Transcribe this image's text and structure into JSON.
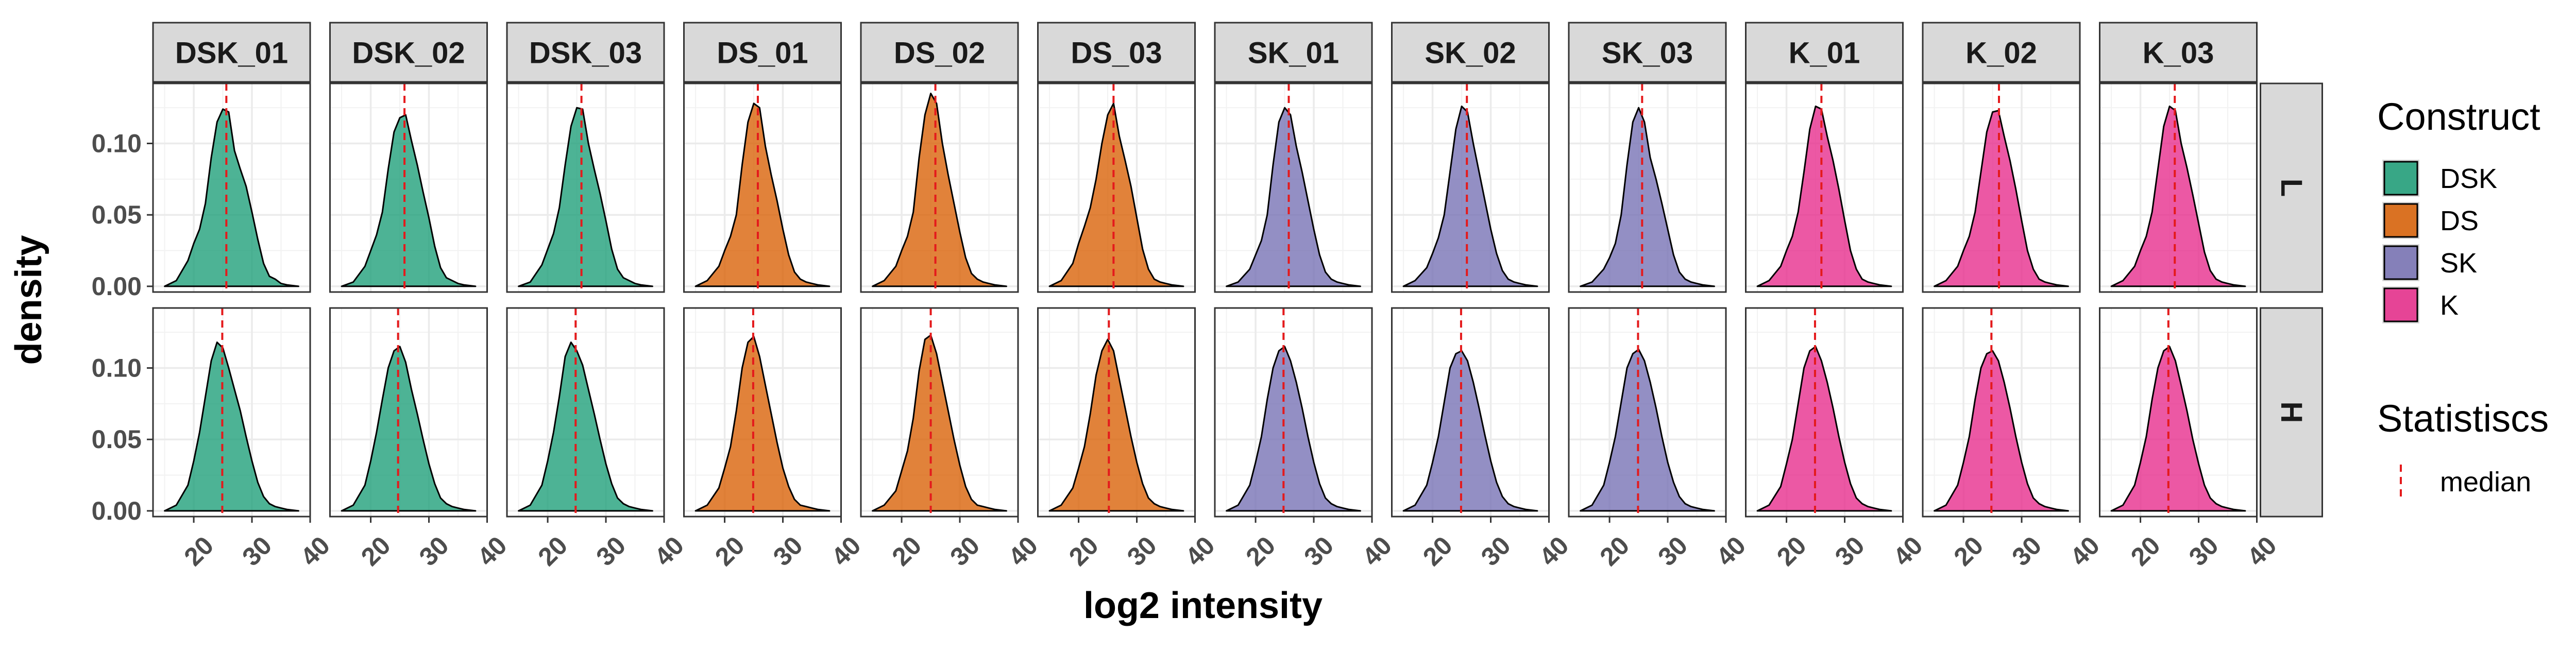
{
  "chart_data": {
    "type": "density",
    "facet_columns": [
      "DSK_01",
      "DSK_02",
      "DSK_03",
      "DS_01",
      "DS_02",
      "DS_03",
      "SK_01",
      "SK_02",
      "SK_03",
      "K_01",
      "K_02",
      "K_03"
    ],
    "facet_rows": [
      "L",
      "H"
    ],
    "column_construct": [
      "DSK",
      "DSK",
      "DSK",
      "DS",
      "DS",
      "DS",
      "SK",
      "SK",
      "SK",
      "K",
      "K",
      "K"
    ],
    "xlabel": "log2 intensity",
    "ylabel": "density",
    "xlim": [
      13,
      40
    ],
    "ylim": [
      -0.004,
      0.142
    ],
    "x_ticks": [
      20,
      30,
      40
    ],
    "x_tick_labels": [
      "20",
      "30",
      "40"
    ],
    "y_ticks": [
      0.0,
      0.05,
      0.1
    ],
    "y_tick_labels": [
      "0.00",
      "0.05",
      "0.10"
    ],
    "grid": true,
    "median_line": {
      "color": "#E41A1C",
      "style": "dashed"
    },
    "density_x": [
      15,
      17,
      19,
      20,
      21,
      22,
      23,
      24,
      25,
      26,
      27,
      28,
      29,
      30,
      31,
      32,
      33,
      34,
      35,
      36,
      38
    ],
    "panels": {
      "L": [
        {
          "median": 25.6,
          "density": [
            0.0,
            0.004,
            0.018,
            0.03,
            0.04,
            0.058,
            0.09,
            0.115,
            0.124,
            0.122,
            0.095,
            0.082,
            0.07,
            0.052,
            0.033,
            0.016,
            0.007,
            0.005,
            0.002,
            0.001,
            0.0
          ]
        },
        {
          "median": 25.8,
          "density": [
            0.0,
            0.003,
            0.014,
            0.025,
            0.036,
            0.052,
            0.082,
            0.108,
            0.118,
            0.12,
            0.102,
            0.085,
            0.066,
            0.048,
            0.028,
            0.013,
            0.006,
            0.004,
            0.002,
            0.001,
            0.0
          ]
        },
        {
          "median": 25.8,
          "density": [
            0.0,
            0.003,
            0.015,
            0.026,
            0.037,
            0.055,
            0.085,
            0.112,
            0.125,
            0.124,
            0.1,
            0.082,
            0.065,
            0.046,
            0.026,
            0.012,
            0.006,
            0.004,
            0.002,
            0.001,
            0.0
          ]
        },
        {
          "median": 25.7,
          "density": [
            0.0,
            0.004,
            0.014,
            0.025,
            0.035,
            0.05,
            0.085,
            0.115,
            0.128,
            0.125,
            0.098,
            0.078,
            0.06,
            0.04,
            0.022,
            0.01,
            0.005,
            0.003,
            0.002,
            0.001,
            0.0
          ]
        },
        {
          "median": 25.8,
          "density": [
            0.0,
            0.004,
            0.014,
            0.025,
            0.035,
            0.052,
            0.09,
            0.12,
            0.135,
            0.128,
            0.1,
            0.078,
            0.058,
            0.038,
            0.02,
            0.009,
            0.005,
            0.003,
            0.002,
            0.001,
            0.0
          ]
        },
        {
          "median": 26.0,
          "density": [
            0.0,
            0.004,
            0.016,
            0.03,
            0.042,
            0.055,
            0.075,
            0.1,
            0.12,
            0.128,
            0.105,
            0.088,
            0.07,
            0.048,
            0.026,
            0.012,
            0.005,
            0.003,
            0.002,
            0.001,
            0.0
          ]
        },
        {
          "median": 25.7,
          "density": [
            0.0,
            0.003,
            0.012,
            0.022,
            0.032,
            0.05,
            0.085,
            0.115,
            0.125,
            0.12,
            0.098,
            0.08,
            0.06,
            0.04,
            0.022,
            0.01,
            0.005,
            0.003,
            0.002,
            0.001,
            0.0
          ]
        },
        {
          "median": 25.9,
          "density": [
            0.0,
            0.004,
            0.013,
            0.023,
            0.034,
            0.05,
            0.08,
            0.11,
            0.126,
            0.122,
            0.1,
            0.08,
            0.06,
            0.04,
            0.023,
            0.011,
            0.005,
            0.003,
            0.002,
            0.001,
            0.0
          ]
        },
        {
          "median": 25.6,
          "density": [
            0.0,
            0.003,
            0.012,
            0.02,
            0.03,
            0.05,
            0.085,
            0.115,
            0.125,
            0.115,
            0.09,
            0.075,
            0.058,
            0.04,
            0.022,
            0.01,
            0.005,
            0.003,
            0.002,
            0.001,
            0.0
          ]
        },
        {
          "median": 26.0,
          "density": [
            0.0,
            0.004,
            0.014,
            0.025,
            0.035,
            0.052,
            0.08,
            0.11,
            0.126,
            0.124,
            0.105,
            0.088,
            0.068,
            0.046,
            0.025,
            0.012,
            0.005,
            0.003,
            0.002,
            0.001,
            0.0
          ]
        },
        {
          "median": 26.1,
          "density": [
            0.0,
            0.004,
            0.014,
            0.025,
            0.035,
            0.052,
            0.08,
            0.108,
            0.122,
            0.123,
            0.105,
            0.088,
            0.068,
            0.046,
            0.025,
            0.012,
            0.005,
            0.003,
            0.002,
            0.001,
            0.0
          ]
        },
        {
          "median": 25.9,
          "density": [
            0.0,
            0.004,
            0.014,
            0.025,
            0.035,
            0.052,
            0.082,
            0.112,
            0.126,
            0.123,
            0.1,
            0.083,
            0.064,
            0.044,
            0.024,
            0.011,
            0.005,
            0.003,
            0.002,
            0.001,
            0.0
          ]
        }
      ],
      "H": [
        {
          "median": 24.9,
          "density": [
            0.0,
            0.004,
            0.018,
            0.035,
            0.055,
            0.08,
            0.105,
            0.118,
            0.114,
            0.1,
            0.085,
            0.07,
            0.052,
            0.035,
            0.02,
            0.01,
            0.005,
            0.003,
            0.002,
            0.001,
            0.0
          ]
        },
        {
          "median": 24.7,
          "density": [
            0.0,
            0.004,
            0.018,
            0.035,
            0.055,
            0.078,
            0.1,
            0.112,
            0.115,
            0.104,
            0.085,
            0.068,
            0.05,
            0.033,
            0.019,
            0.009,
            0.005,
            0.003,
            0.002,
            0.001,
            0.0
          ]
        },
        {
          "median": 24.8,
          "density": [
            0.0,
            0.004,
            0.018,
            0.035,
            0.055,
            0.08,
            0.108,
            0.118,
            0.112,
            0.102,
            0.085,
            0.068,
            0.05,
            0.033,
            0.019,
            0.009,
            0.005,
            0.003,
            0.002,
            0.001,
            0.0
          ]
        },
        {
          "median": 24.9,
          "density": [
            0.0,
            0.004,
            0.016,
            0.03,
            0.045,
            0.07,
            0.1,
            0.118,
            0.122,
            0.108,
            0.088,
            0.068,
            0.048,
            0.03,
            0.017,
            0.008,
            0.004,
            0.003,
            0.002,
            0.001,
            0.0
          ]
        },
        {
          "median": 25.0,
          "density": [
            0.0,
            0.004,
            0.014,
            0.028,
            0.042,
            0.065,
            0.098,
            0.12,
            0.123,
            0.11,
            0.09,
            0.07,
            0.05,
            0.032,
            0.017,
            0.008,
            0.004,
            0.003,
            0.002,
            0.001,
            0.0
          ]
        },
        {
          "median": 25.2,
          "density": [
            0.0,
            0.004,
            0.016,
            0.03,
            0.045,
            0.068,
            0.095,
            0.112,
            0.12,
            0.112,
            0.092,
            0.072,
            0.052,
            0.034,
            0.019,
            0.009,
            0.005,
            0.003,
            0.002,
            0.001,
            0.0
          ]
        },
        {
          "median": 24.8,
          "density": [
            0.0,
            0.004,
            0.018,
            0.034,
            0.052,
            0.078,
            0.1,
            0.112,
            0.115,
            0.105,
            0.09,
            0.072,
            0.052,
            0.034,
            0.019,
            0.009,
            0.005,
            0.003,
            0.002,
            0.001,
            0.0
          ]
        },
        {
          "median": 24.9,
          "density": [
            0.0,
            0.004,
            0.018,
            0.034,
            0.052,
            0.076,
            0.1,
            0.11,
            0.112,
            0.105,
            0.09,
            0.072,
            0.053,
            0.035,
            0.02,
            0.01,
            0.005,
            0.003,
            0.002,
            0.001,
            0.0
          ]
        },
        {
          "median": 24.9,
          "density": [
            0.0,
            0.004,
            0.018,
            0.034,
            0.052,
            0.076,
            0.1,
            0.11,
            0.113,
            0.105,
            0.09,
            0.072,
            0.052,
            0.034,
            0.02,
            0.01,
            0.005,
            0.003,
            0.002,
            0.001,
            0.0
          ]
        },
        {
          "median": 24.9,
          "density": [
            0.0,
            0.004,
            0.017,
            0.033,
            0.05,
            0.075,
            0.1,
            0.112,
            0.115,
            0.105,
            0.09,
            0.072,
            0.052,
            0.034,
            0.019,
            0.009,
            0.005,
            0.003,
            0.002,
            0.001,
            0.0
          ]
        },
        {
          "median": 24.8,
          "density": [
            0.0,
            0.004,
            0.018,
            0.034,
            0.052,
            0.078,
            0.1,
            0.11,
            0.112,
            0.105,
            0.09,
            0.072,
            0.052,
            0.034,
            0.019,
            0.009,
            0.005,
            0.003,
            0.002,
            0.001,
            0.0
          ]
        },
        {
          "median": 24.8,
          "density": [
            0.0,
            0.004,
            0.018,
            0.034,
            0.052,
            0.078,
            0.1,
            0.112,
            0.115,
            0.105,
            0.088,
            0.07,
            0.05,
            0.033,
            0.018,
            0.009,
            0.005,
            0.003,
            0.002,
            0.001,
            0.0
          ]
        }
      ]
    },
    "legend": {
      "position": "right",
      "construct_title": "Construct",
      "construct_items": [
        {
          "label": "DSK",
          "color": "#1B9E77"
        },
        {
          "label": "DS",
          "color": "#D95F02"
        },
        {
          "label": "SK",
          "color": "#7570B3"
        },
        {
          "label": "K",
          "color": "#E7298A"
        }
      ],
      "stats_title": "Statistiscs",
      "stats_items": [
        {
          "label": "median",
          "color": "#E41A1C"
        }
      ]
    }
  }
}
